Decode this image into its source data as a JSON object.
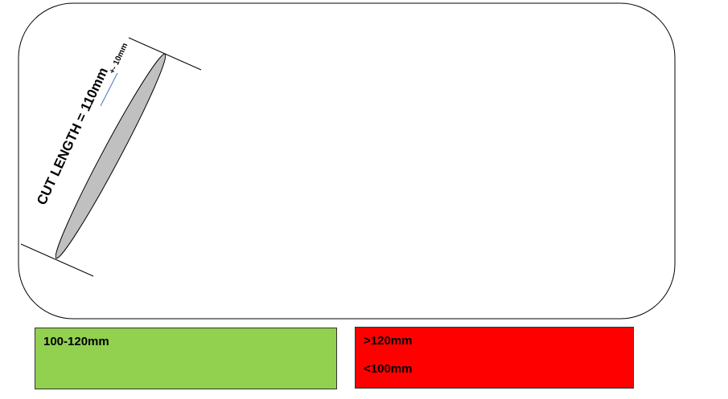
{
  "diagram": {
    "cut_length_label": "CUT LENGTH = 110mm",
    "tolerance_label": "+- 10mm"
  },
  "legend": {
    "accept": {
      "label": "100-120mm",
      "color": "#92d050"
    },
    "reject": {
      "labels": [
        ">120mm",
        "<100mm"
      ],
      "color": "#ff0000"
    }
  },
  "colors": {
    "panel_border": "#000000",
    "part_fill": "#c0c0c0",
    "tolerance_underline": "#4472c4"
  }
}
